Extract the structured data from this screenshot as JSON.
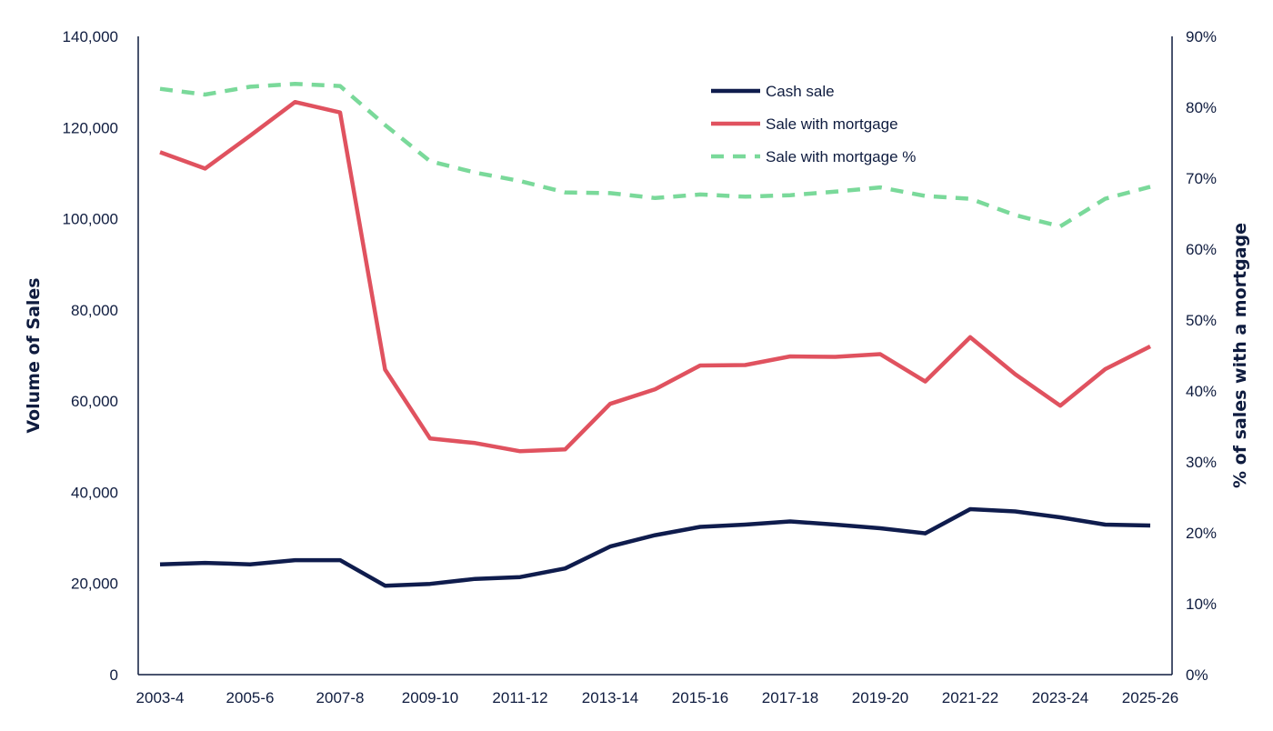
{
  "chart_data": {
    "type": "line",
    "categories": [
      "2003-4",
      "2004-5",
      "2005-6",
      "2006-7",
      "2007-8",
      "2008-9",
      "2009-10",
      "2010-11",
      "2011-12",
      "2012-13",
      "2013-14",
      "2014-15",
      "2015-16",
      "2016-17",
      "2017-18",
      "2018-19",
      "2019-20",
      "2020-21",
      "2021-22",
      "2022-23",
      "2023-24",
      "2024-25",
      "2025-26"
    ],
    "x_tick_labels": [
      "2003-4",
      "2005-6",
      "2007-8",
      "2009-10",
      "2011-12",
      "2013-14",
      "2015-16",
      "2017-18",
      "2019-20",
      "2021-22",
      "2023-24",
      "2025-26"
    ],
    "ylabel": "Volume of Sales",
    "y2label": "% of sales with a mortgage",
    "ylim": [
      0,
      140000
    ],
    "y2lim": [
      0,
      90
    ],
    "y_ticks": [
      "0",
      "20,000",
      "40,000",
      "60,000",
      "80,000",
      "100,000",
      "120,000",
      "140,000"
    ],
    "y2_ticks": [
      "0%",
      "10%",
      "20%",
      "30%",
      "40%",
      "50%",
      "60%",
      "70%",
      "80%",
      "90%"
    ],
    "legend_position": "top-center",
    "grid": false,
    "series": [
      {
        "name": "Cash sale",
        "axis": "left",
        "color": "#0f1c4d",
        "style": "solid",
        "values": [
          24200,
          24500,
          24200,
          25100,
          25100,
          19500,
          19900,
          21000,
          21400,
          23300,
          28100,
          30600,
          32400,
          32900,
          33600,
          32900,
          32100,
          31000,
          36300,
          35800,
          34500,
          32900,
          32700
        ]
      },
      {
        "name": "Sale with mortgage",
        "axis": "left",
        "color": "#e0525f",
        "style": "solid",
        "values": [
          114600,
          111000,
          118200,
          125600,
          123300,
          66900,
          51800,
          50800,
          49000,
          49400,
          59400,
          62600,
          67800,
          67900,
          69800,
          69700,
          70300,
          64300,
          74000,
          65900,
          59000,
          67000,
          72000
        ]
      },
      {
        "name": "Sale with mortgage %",
        "axis": "right",
        "color": "#7ad99a",
        "style": "dashed",
        "values": [
          82.6,
          81.8,
          82.9,
          83.3,
          83.0,
          77.5,
          72.4,
          70.8,
          69.6,
          68.0,
          67.9,
          67.2,
          67.7,
          67.4,
          67.6,
          68.1,
          68.7,
          67.5,
          67.1,
          64.8,
          63.2,
          67.1,
          68.8
        ]
      }
    ]
  }
}
